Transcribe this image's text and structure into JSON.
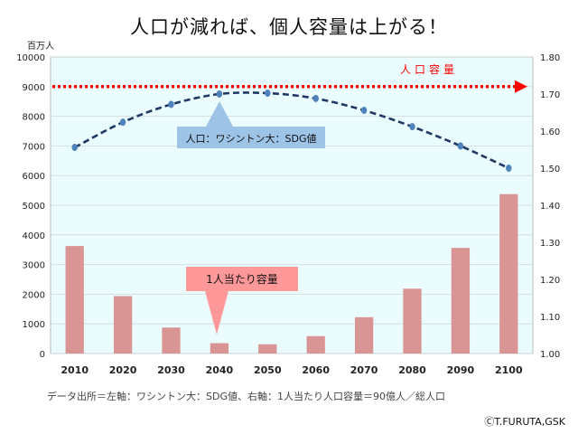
{
  "chart_data": {
    "type": "bar",
    "title": "人口が減れば、個人容量は上がる！",
    "unit_label": "百万人",
    "categories": [
      "2010",
      "2020",
      "2030",
      "2040",
      "2050",
      "2060",
      "2070",
      "2080",
      "2090",
      "2100"
    ],
    "ylim_left": [
      0,
      10000
    ],
    "ylim_right": [
      1.0,
      1.8
    ],
    "left_ticks": [
      "0",
      "1000",
      "2000",
      "3000",
      "4000",
      "5000",
      "6000",
      "7000",
      "8000",
      "9000",
      "10000"
    ],
    "right_ticks": [
      "1.00",
      "1.10",
      "1.20",
      "1.30",
      "1.40",
      "1.50",
      "1.60",
      "1.70",
      "1.80"
    ],
    "series": [
      {
        "name": "人口：ワシントン大：SDG値",
        "type": "line",
        "axis": "left",
        "values": [
          6950,
          7800,
          8400,
          8750,
          8780,
          8600,
          8200,
          7650,
          7000,
          6250
        ]
      },
      {
        "name": "1人当たり容量",
        "type": "bar",
        "axis": "right",
        "values": [
          1.29,
          1.155,
          1.07,
          1.028,
          1.025,
          1.047,
          1.098,
          1.175,
          1.285,
          1.43
        ]
      },
      {
        "name": "人口容量",
        "type": "reference",
        "axis": "left",
        "value": 9000
      }
    ],
    "annotations": {
      "population": "人口：ワシントン大：SDG値",
      "capacity_per_person": "1人当たり容量",
      "population_capacity": "人口容量"
    },
    "source_note": "データ出所＝左軸：ワシントン大：SDG値、右軸：1人当たり人口容量＝90億人／総人口",
    "copyright": "ⒸT.FURUTA,GSK",
    "colors": {
      "plot_bg": "#eafcfd",
      "bar": "#d99594",
      "line": "#1f3864",
      "marker": "#4f81bd",
      "reference": "#ff0000",
      "callout_blue": "#9dc3e6",
      "callout_pink": "#ff9999"
    }
  }
}
